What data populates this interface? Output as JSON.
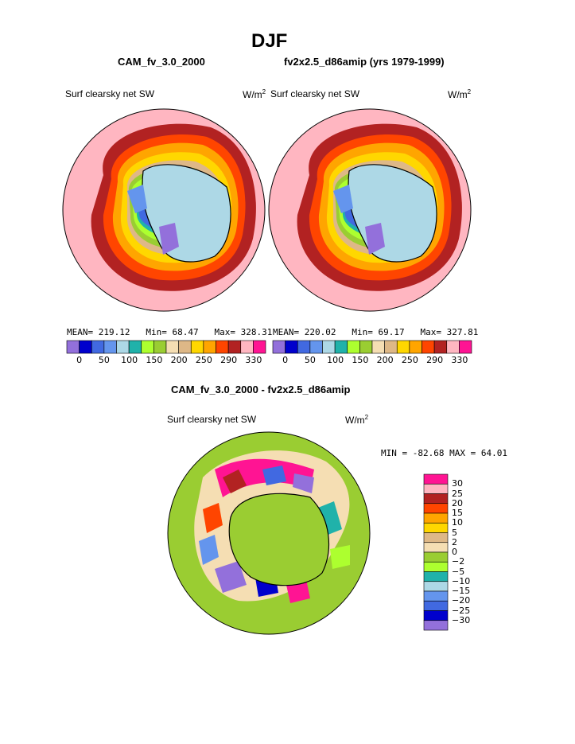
{
  "title": "DJF",
  "panels": [
    {
      "case": "CAM_fv_3.0_2000",
      "variable": "Surf clearsky net SW",
      "units_base": "W/m",
      "units_sup": "2",
      "stats": {
        "mean": "MEAN= 219.12",
        "min": "Min=  68.47",
        "max": "Max= 328.31"
      }
    },
    {
      "case": "fv2x2.5_d86amip (yrs 1979-1999)",
      "variable": "Surf clearsky net SW",
      "units_base": "W/m",
      "units_sup": "2",
      "stats": {
        "mean": "MEAN= 220.02",
        "min": "Min=  69.17",
        "max": "Max= 327.81"
      }
    }
  ],
  "colorbar": {
    "colors": [
      "#9370db",
      "#0000cd",
      "#4169e1",
      "#6495ed",
      "#add8e6",
      "#20b2aa",
      "#adff2f",
      "#9acd32",
      "#f5deb3",
      "#deb887",
      "#ffd700",
      "#ffa500",
      "#ff4500",
      "#b22222",
      "#ffb6c1",
      "#ff1493"
    ],
    "ticks": [
      "0",
      "50",
      "100",
      "150",
      "200",
      "250",
      "290",
      "330"
    ]
  },
  "difference": {
    "case": "CAM_fv_3.0_2000 - fv2x2.5_d86amip",
    "variable": "Surf clearsky net SW",
    "units_base": "W/m",
    "units_sup": "2",
    "minmax": "MIN = -82.68 MAX =  64.01",
    "legend": [
      {
        "label": "30",
        "color": "#ff1493"
      },
      {
        "label": "25",
        "color": "#ffb6c1"
      },
      {
        "label": "20",
        "color": "#b22222"
      },
      {
        "label": "15",
        "color": "#ff4500"
      },
      {
        "label": "10",
        "color": "#ffa500"
      },
      {
        "label": "5",
        "color": "#ffd700"
      },
      {
        "label": "2",
        "color": "#deb887"
      },
      {
        "label": "0",
        "color": "#f5deb3"
      },
      {
        "label": "−2",
        "color": "#9acd32"
      },
      {
        "label": "−5",
        "color": "#adff2f"
      },
      {
        "label": "−10",
        "color": "#20b2aa"
      },
      {
        "label": "−15",
        "color": "#add8e6"
      },
      {
        "label": "−20",
        "color": "#6495ed"
      },
      {
        "label": "−25",
        "color": "#4169e1"
      },
      {
        "label": "−30",
        "color": "#0000cd"
      },
      {
        "label": "",
        "color": "#9370db"
      }
    ]
  }
}
